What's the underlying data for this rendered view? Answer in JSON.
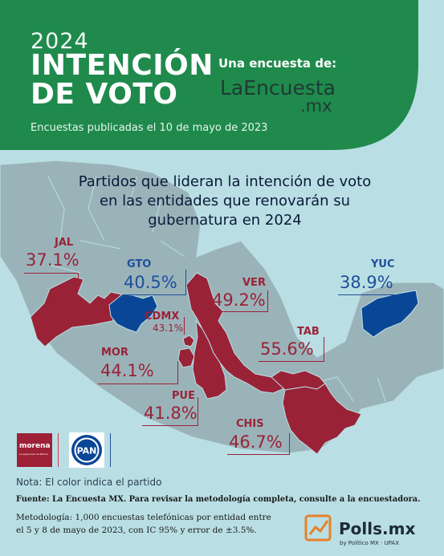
{
  "header": {
    "year": "2024",
    "title_line1": "INTENCIÓN",
    "title_line2": "DE VOTO",
    "survey_by": "Una encuesta de:",
    "brand_line1": "LaEncuesta",
    "brand_line2": ".mx",
    "published": "Encuestas publicadas el 10 de mayo de 2023"
  },
  "question": {
    "line1": "Partidos que lideran la intención de voto",
    "line2": "en las entidades que renovarán su",
    "line3": "gubernatura en 2024"
  },
  "states": [
    {
      "code": "JAL",
      "value": "37.1%",
      "party": "morena"
    },
    {
      "code": "GTO",
      "value": "40.5%",
      "party": "PAN"
    },
    {
      "code": "CDMX",
      "value": "43.1%",
      "party": "morena"
    },
    {
      "code": "VER",
      "value": "49.2%",
      "party": "morena"
    },
    {
      "code": "YUC",
      "value": "38.9%",
      "party": "PAN"
    },
    {
      "code": "TAB",
      "value": "55.6%",
      "party": "morena"
    },
    {
      "code": "MOR",
      "value": "44.1%",
      "party": "morena"
    },
    {
      "code": "PUE",
      "value": "41.8%",
      "party": "morena"
    },
    {
      "code": "CHIS",
      "value": "46.7%",
      "party": "morena"
    }
  ],
  "legend": {
    "morena_name": "morena",
    "morena_tagline": "La esperanza de México",
    "pan_name": "PAN",
    "note": "Nota: El color indica el partido"
  },
  "footer": {
    "source": "Fuente: La Encuesta MX. Para revisar la metodología completa, consulte a la encuestadora.",
    "method_line1": "Metodología: 1,000 encuestas telefónicas por entidad entre",
    "method_line2": "el 5 y 8 de mayo de 2023, con IC 95% y error de ±3.5%.",
    "polls_brand": "Polls.mx",
    "polls_sub": "by Político MX · UPAX"
  },
  "colors": {
    "header_green": "#1f8a4c",
    "background": "#b9dfe4",
    "land": "#9ab3b9",
    "morena": "#9a2237",
    "pan": "#0a4696"
  }
}
